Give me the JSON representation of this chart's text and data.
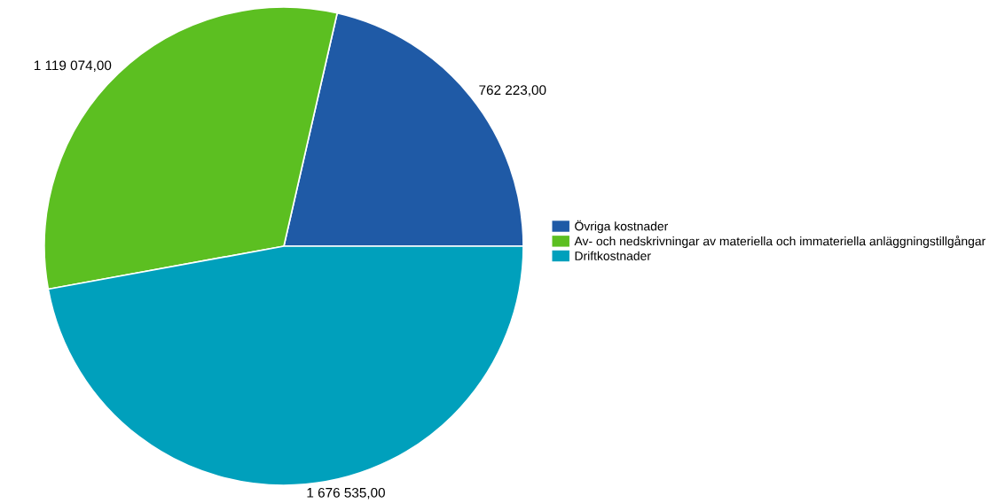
{
  "chart_data": {
    "type": "pie",
    "categories": [
      "Övriga kostnader",
      "Av- och nedskrivningar av materiella och immateriella anläggningstillgångar",
      "Driftkostnader"
    ],
    "values": [
      762223,
      1119074,
      1676535
    ],
    "value_labels": [
      "762 223,00",
      "1 119 074,00",
      "1 676 535,00"
    ],
    "colors": [
      "#1f5aa6",
      "#5cbf21",
      "#00a0bc"
    ],
    "legend": "right"
  }
}
